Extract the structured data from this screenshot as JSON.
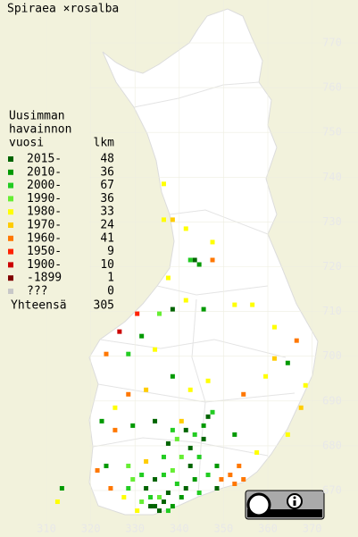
{
  "title": "Spiraea ×rosalba",
  "legend": {
    "heading": [
      "Uusimman",
      "havainnon",
      "vuosi"
    ],
    "count_heading": "lkm",
    "items": [
      {
        "label": "2015-",
        "count": 48,
        "color": "#006400"
      },
      {
        "label": "2010-",
        "count": 36,
        "color": "#009900"
      },
      {
        "label": "2000-",
        "count": 67,
        "color": "#22cc22"
      },
      {
        "label": "1990-",
        "count": 36,
        "color": "#66ee33"
      },
      {
        "label": "1980-",
        "count": 33,
        "color": "#ffff00"
      },
      {
        "label": "1970-",
        "count": 24,
        "color": "#ffcc00"
      },
      {
        "label": "1960-",
        "count": 41,
        "color": "#ff7700"
      },
      {
        "label": "1950-",
        "count": 9,
        "color": "#ff2200"
      },
      {
        "label": "1900-",
        "count": 10,
        "color": "#cc0000"
      },
      {
        "label": "-1899",
        "count": 1,
        "color": "#800000"
      },
      {
        "label": "???",
        "count": 0,
        "color": "#c8c8c8"
      }
    ],
    "total_label": "Yhteensä",
    "total": 305
  },
  "northing_labels": [
    770,
    760,
    750,
    740,
    730,
    720,
    710,
    700,
    690,
    680,
    670
  ],
  "easting_labels": [
    310,
    320,
    330,
    340,
    350,
    360,
    370
  ],
  "squares": [
    [
      336,
      738,
      4
    ],
    [
      336,
      730,
      4
    ],
    [
      338,
      730,
      5
    ],
    [
      341,
      728,
      4
    ],
    [
      347,
      725,
      4
    ],
    [
      343,
      721,
      0
    ],
    [
      342,
      721,
      2
    ],
    [
      344,
      720,
      1
    ],
    [
      347,
      721,
      6
    ],
    [
      337,
      717,
      4
    ],
    [
      341,
      712,
      4
    ],
    [
      338,
      710,
      0
    ],
    [
      335,
      709,
      3
    ],
    [
      345,
      710,
      1
    ],
    [
      352,
      711,
      4
    ],
    [
      356,
      711,
      4
    ],
    [
      330,
      709,
      7
    ],
    [
      331,
      704,
      1
    ],
    [
      326,
      705,
      8
    ],
    [
      323,
      700,
      6
    ],
    [
      328,
      700,
      2
    ],
    [
      334,
      701,
      4
    ],
    [
      361,
      706,
      4
    ],
    [
      366,
      703,
      6
    ],
    [
      361,
      699,
      5
    ],
    [
      364,
      698,
      1
    ],
    [
      359,
      695,
      4
    ],
    [
      368,
      693,
      4
    ],
    [
      367,
      688,
      5
    ],
    [
      364,
      682,
      4
    ],
    [
      354,
      691,
      6
    ],
    [
      346,
      694,
      4
    ],
    [
      342,
      692,
      4
    ],
    [
      338,
      695,
      1
    ],
    [
      332,
      692,
      5
    ],
    [
      328,
      691,
      6
    ],
    [
      325,
      688,
      4
    ],
    [
      322,
      685,
      1
    ],
    [
      325,
      683,
      6
    ],
    [
      329,
      684,
      1
    ],
    [
      334,
      685,
      0
    ],
    [
      338,
      683,
      2
    ],
    [
      337,
      680,
      0
    ],
    [
      340,
      685,
      5
    ],
    [
      345,
      684,
      1
    ],
    [
      345,
      681,
      0
    ],
    [
      352,
      682,
      1
    ],
    [
      357,
      678,
      4
    ],
    [
      353,
      675,
      6
    ],
    [
      351,
      673,
      6
    ],
    [
      354,
      672,
      6
    ],
    [
      348,
      675,
      1
    ],
    [
      344,
      677,
      2
    ],
    [
      340,
      677,
      3
    ],
    [
      336,
      677,
      2
    ],
    [
      332,
      676,
      5
    ],
    [
      328,
      675,
      3
    ],
    [
      323,
      675,
      1
    ],
    [
      321,
      674,
      6
    ],
    [
      324,
      670,
      6
    ],
    [
      328,
      670,
      2
    ],
    [
      332,
      670,
      0
    ],
    [
      336,
      667,
      0
    ],
    [
      340,
      668,
      1
    ],
    [
      344,
      669,
      2
    ],
    [
      348,
      670,
      0
    ],
    [
      330,
      665,
      4
    ],
    [
      334,
      666,
      0
    ],
    [
      338,
      666,
      1
    ],
    [
      313,
      670,
      1
    ],
    [
      312,
      667,
      4
    ],
    [
      333,
      668,
      2
    ],
    [
      335,
      668,
      3
    ],
    [
      337,
      669,
      0
    ],
    [
      339,
      671,
      2
    ],
    [
      341,
      670,
      0
    ],
    [
      343,
      672,
      1
    ],
    [
      346,
      673,
      2
    ],
    [
      349,
      672,
      6
    ],
    [
      352,
      671,
      6
    ],
    [
      331,
      667,
      3
    ],
    [
      333,
      666,
      0
    ],
    [
      335,
      665,
      0
    ],
    [
      337,
      665,
      2
    ],
    [
      342,
      679,
      0
    ],
    [
      343,
      682,
      2
    ],
    [
      339,
      681,
      3
    ],
    [
      341,
      683,
      0
    ],
    [
      346,
      686,
      0
    ],
    [
      347,
      687,
      2
    ],
    [
      331,
      673,
      2
    ],
    [
      329,
      672,
      3
    ],
    [
      327,
      668,
      4
    ],
    [
      334,
      672,
      0
    ],
    [
      336,
      673,
      2
    ],
    [
      338,
      674,
      3
    ],
    [
      342,
      675,
      0
    ]
  ]
}
